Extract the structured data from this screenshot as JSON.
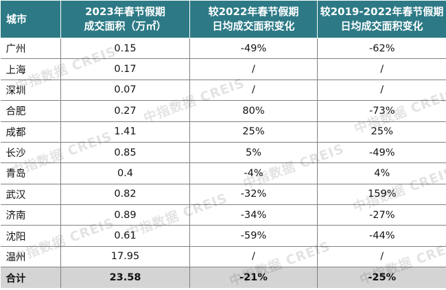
{
  "table": {
    "headers": {
      "city": "城市",
      "col2": [
        "2023年春节假期",
        "成交面积（万㎡）"
      ],
      "col3": [
        "较2022年春节假期",
        "日均成交面积变化"
      ],
      "col4": [
        "较2019-2022年春节假期",
        "日均成交面积变化"
      ]
    },
    "rows": [
      [
        "广州",
        "0.15",
        "-49%",
        "-62%"
      ],
      [
        "上海",
        "0.17",
        "/",
        "/"
      ],
      [
        "深圳",
        "0.07",
        "/",
        "/"
      ],
      [
        "合肥",
        "0.27",
        "80%",
        "-73%"
      ],
      [
        "成都",
        "1.41",
        "25%",
        "25%"
      ],
      [
        "长沙",
        "0.85",
        "5%",
        "-49%"
      ],
      [
        "青岛",
        "0.4",
        "-4%",
        "4%"
      ],
      [
        "武汉",
        "0.82",
        "-32%",
        "159%"
      ],
      [
        "济南",
        "0.89",
        "-34%",
        "-27%"
      ],
      [
        "沈阳",
        "0.61",
        "-59%",
        "-44%"
      ],
      [
        "温州",
        "17.95",
        "/",
        "/"
      ]
    ],
    "total": [
      "合计",
      "23.58",
      "-21%",
      "-25%"
    ]
  },
  "watermark": "中指数据 CREIS",
  "colors": {
    "header_bg": "#2d7a86",
    "header_text": "#ffffff",
    "total_bg": "#d4d4d4",
    "grid": "#7f7f7f"
  }
}
